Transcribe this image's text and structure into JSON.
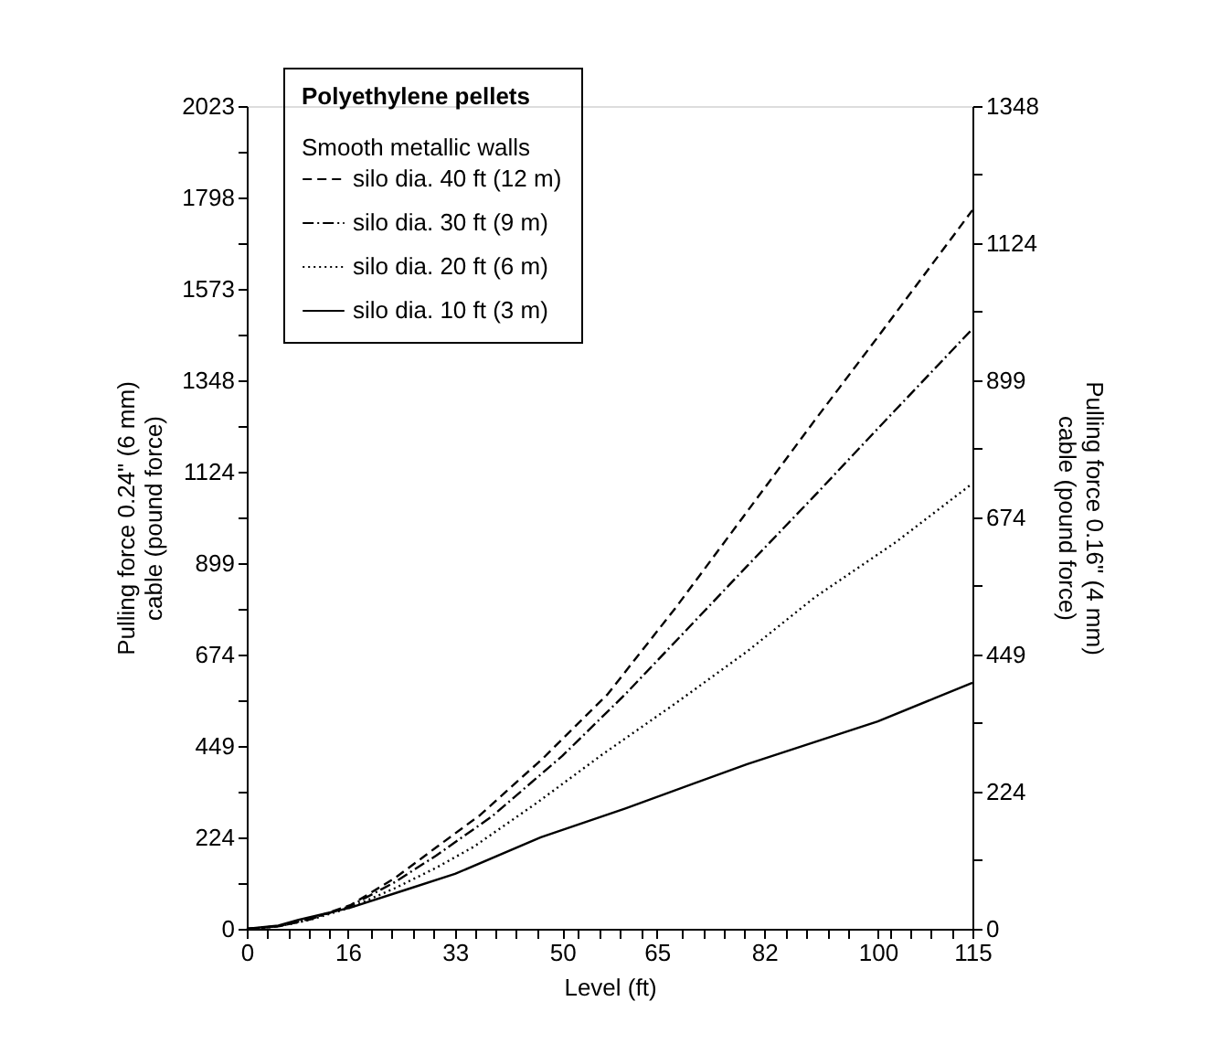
{
  "chart_data": {
    "type": "line",
    "xlabel": "Level (ft)",
    "ylabel": "Pulling force 0.24\" (6 mm)\ncable (pound force)",
    "y2label": "Pulling force 0.16\" (4 mm)\ncable (pound force)",
    "legend_title": "Polyethylene pellets",
    "annotations": [
      "Smooth metallic walls"
    ],
    "legend": "top left",
    "grid": false,
    "xlim": [
      0,
      115
    ],
    "xticks": [
      {
        "value": 0,
        "label": "0"
      },
      {
        "value": 3.29,
        "label": null
      },
      {
        "value": 6.57,
        "label": null
      },
      {
        "value": 9.86,
        "label": null
      },
      {
        "value": 13.14,
        "label": null
      },
      {
        "value": 16,
        "label": "16"
      },
      {
        "value": 19.71,
        "label": null
      },
      {
        "value": 23,
        "label": null
      },
      {
        "value": 26.29,
        "label": null
      },
      {
        "value": 29.57,
        "label": null
      },
      {
        "value": 33,
        "label": "33"
      },
      {
        "value": 36.14,
        "label": null
      },
      {
        "value": 39.43,
        "label": null
      },
      {
        "value": 42.71,
        "label": null
      },
      {
        "value": 46,
        "label": null
      },
      {
        "value": 50,
        "label": "50"
      },
      {
        "value": 52.57,
        "label": null
      },
      {
        "value": 55.86,
        "label": null
      },
      {
        "value": 59.14,
        "label": null
      },
      {
        "value": 62.43,
        "label": null
      },
      {
        "value": 65,
        "label": "65"
      },
      {
        "value": 69,
        "label": null
      },
      {
        "value": 72.29,
        "label": null
      },
      {
        "value": 75.57,
        "label": null
      },
      {
        "value": 78.86,
        "label": null
      },
      {
        "value": 82,
        "label": "82"
      },
      {
        "value": 85.43,
        "label": null
      },
      {
        "value": 88.71,
        "label": null
      },
      {
        "value": 92,
        "label": null
      },
      {
        "value": 95.29,
        "label": null
      },
      {
        "value": 100,
        "label": "100"
      },
      {
        "value": 101.86,
        "label": null
      },
      {
        "value": 105.14,
        "label": null
      },
      {
        "value": 108.43,
        "label": null
      },
      {
        "value": 111.71,
        "label": null
      },
      {
        "value": 115,
        "label": "115"
      }
    ],
    "ylim": [
      0,
      2023
    ],
    "yticks": [
      0,
      {
        "value": 112.4,
        "label": null
      },
      224,
      {
        "value": 337.2,
        "label": null
      },
      449,
      {
        "value": 562,
        "label": null
      },
      674,
      {
        "value": 786.8,
        "label": null
      },
      899,
      {
        "value": 1011.6,
        "label": null
      },
      1124,
      {
        "value": 1236.4,
        "label": null
      },
      1348,
      {
        "value": 1461.2,
        "label": null
      },
      1573,
      {
        "value": 1686,
        "label": null
      },
      1798,
      {
        "value": 1910.8,
        "label": null
      },
      2023
    ],
    "y2lim": [
      0,
      1348
    ],
    "y2ticks": [
      0,
      {
        "value": 112.4,
        "label": null
      },
      224,
      {
        "value": 337.2,
        "label": null
      },
      449,
      {
        "value": 562,
        "label": null
      },
      674,
      {
        "value": 786.8,
        "label": null
      },
      899,
      {
        "value": 1011.6,
        "label": null
      },
      1124,
      {
        "value": 1236.4,
        "label": null
      },
      1348
    ],
    "series": [
      {
        "name": "silo dia. 40 ft (12 m)",
        "color": "#000000",
        "line_style": "dashed",
        "x": [
          0,
          5,
          10,
          16.4,
          23.5,
          30,
          37,
          47,
          57.2,
          68,
          79.3,
          90,
          100,
          115
        ],
        "values": [
          0,
          6,
          24,
          58,
          125,
          200,
          280,
          420,
          577,
          790,
          1026,
          1250,
          1455,
          1767
        ]
      },
      {
        "name": "silo dia. 30 ft (9 m)",
        "color": "#000000",
        "line_style": "dashdot",
        "x": [
          0,
          5,
          10,
          16.4,
          23.5,
          30,
          38.9,
          50,
          60,
          70,
          79.3,
          90,
          100,
          115
        ],
        "values": [
          0,
          6,
          23,
          56,
          115,
          180,
          277,
          425,
          577,
          740,
          892,
          1065,
          1230,
          1475
        ]
      },
      {
        "name": "silo dia. 20 ft (6 m)",
        "color": "#000000",
        "line_style": "dotted",
        "x": [
          0,
          5,
          10,
          16.4,
          23.5,
          30,
          36,
          46,
          56.2,
          68,
          79.3,
          90,
          102.8,
          115
        ],
        "values": [
          0,
          6,
          22,
          52,
          100,
          150,
          202,
          310,
          427,
          555,
          682,
          815,
          950,
          1095
        ]
      },
      {
        "name": "silo dia. 10 ft (3 m)",
        "color": "#000000",
        "line_style": "solid",
        "x": [
          0,
          5,
          8.2,
          16.4,
          25,
          33,
          46.6,
          60,
          79.3,
          100,
          115
        ],
        "values": [
          0,
          8,
          22,
          52,
          95,
          135,
          225,
          296,
          405,
          510,
          605
        ]
      }
    ]
  }
}
